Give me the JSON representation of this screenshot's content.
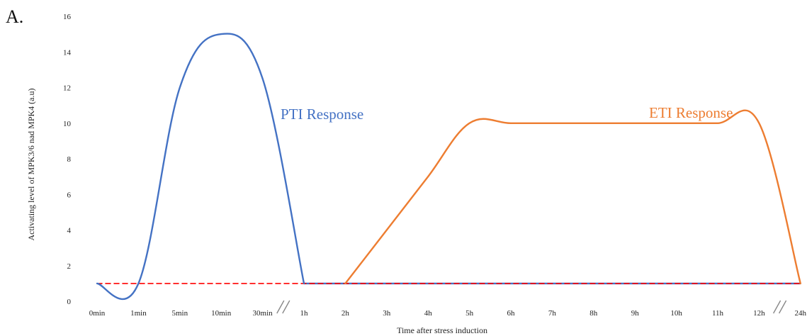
{
  "panel_label": "A.",
  "chart_data": {
    "type": "line",
    "title": "",
    "xlabel": "Time after stress induction",
    "ylabel": "Activating  level  of MPK3/6 nad MPK4 (a.u)",
    "ylim": [
      0,
      16
    ],
    "yticks": [
      0,
      2,
      4,
      6,
      8,
      10,
      12,
      14,
      16
    ],
    "grid": false,
    "legend": "none",
    "categories": [
      "0min",
      "1min",
      "5min",
      "10min",
      "30min",
      "1h",
      "2h",
      "3h",
      "4h",
      "5h",
      "6h",
      "7h",
      "8h",
      "9h",
      "10h",
      "11h",
      "12h",
      "24h"
    ],
    "axis_breaks": [
      {
        "between": [
          "30min",
          "1h"
        ],
        "symbol": "//"
      },
      {
        "between": [
          "12h",
          "24h"
        ],
        "symbol": "//"
      }
    ],
    "series": [
      {
        "name": "PTI Response",
        "color": "#4472C4",
        "points": [
          {
            "x": "0min",
            "y": 1
          },
          {
            "x": "1min",
            "y": 1
          },
          {
            "x": "5min",
            "y": 12
          },
          {
            "x": "10min",
            "y": 15
          },
          {
            "x": "30min",
            "y": 12.5
          },
          {
            "x": "1h",
            "y": 1
          }
        ]
      },
      {
        "name": "ETI Response",
        "color": "#ED7D31",
        "points": [
          {
            "x": "2h",
            "y": 1
          },
          {
            "x": "3h",
            "y": 4
          },
          {
            "x": "4h",
            "y": 7
          },
          {
            "x": "5h",
            "y": 10
          },
          {
            "x": "6h",
            "y": 10
          },
          {
            "x": "7h",
            "y": 10
          },
          {
            "x": "8h",
            "y": 10
          },
          {
            "x": "9h",
            "y": 10
          },
          {
            "x": "10h",
            "y": 10
          },
          {
            "x": "11h",
            "y": 10
          },
          {
            "x": "12h",
            "y": 10
          },
          {
            "x": "24h",
            "y": 1
          }
        ]
      },
      {
        "name": "",
        "color": "#FF0000",
        "dashed": true,
        "points": [
          {
            "x": "0min",
            "y": 1
          },
          {
            "x": "24h",
            "y": 1
          }
        ]
      },
      {
        "name": "",
        "color": "#4472C4",
        "points": [
          {
            "x": "1h",
            "y": 1
          },
          {
            "x": "24h",
            "y": 1
          }
        ]
      }
    ]
  }
}
